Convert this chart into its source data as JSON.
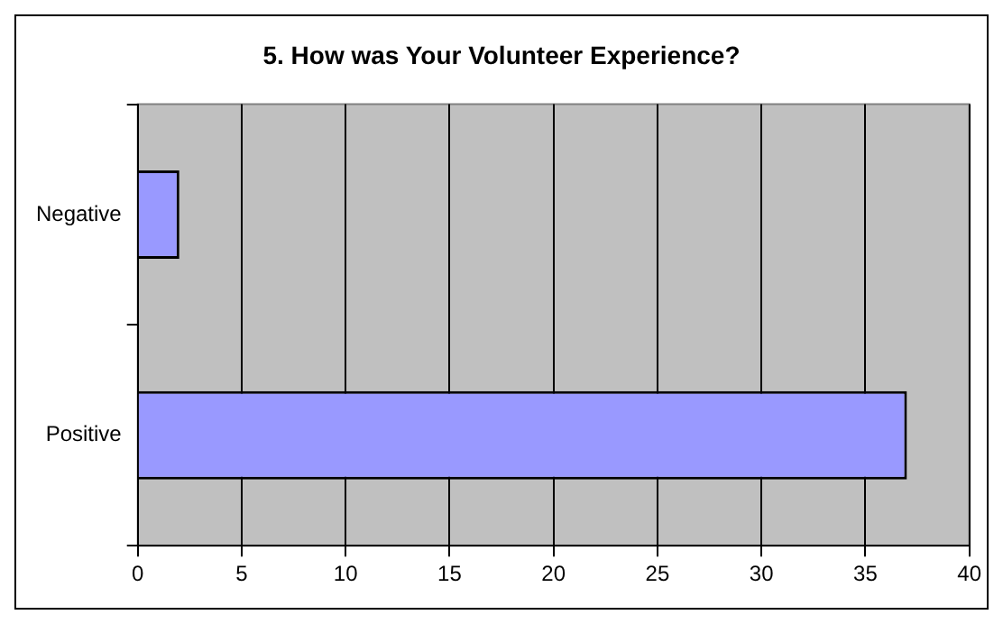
{
  "chart_data": {
    "type": "bar",
    "orientation": "horizontal",
    "title": "5. How was Your Volunteer Experience?",
    "categories": [
      "Negative",
      "Positive"
    ],
    "values": [
      2,
      37
    ],
    "color": "#9999ff",
    "xlim": [
      0,
      40
    ],
    "xticks": [
      0,
      5,
      10,
      15,
      20,
      25,
      30,
      35,
      40
    ],
    "grid": "x",
    "legend": false
  }
}
